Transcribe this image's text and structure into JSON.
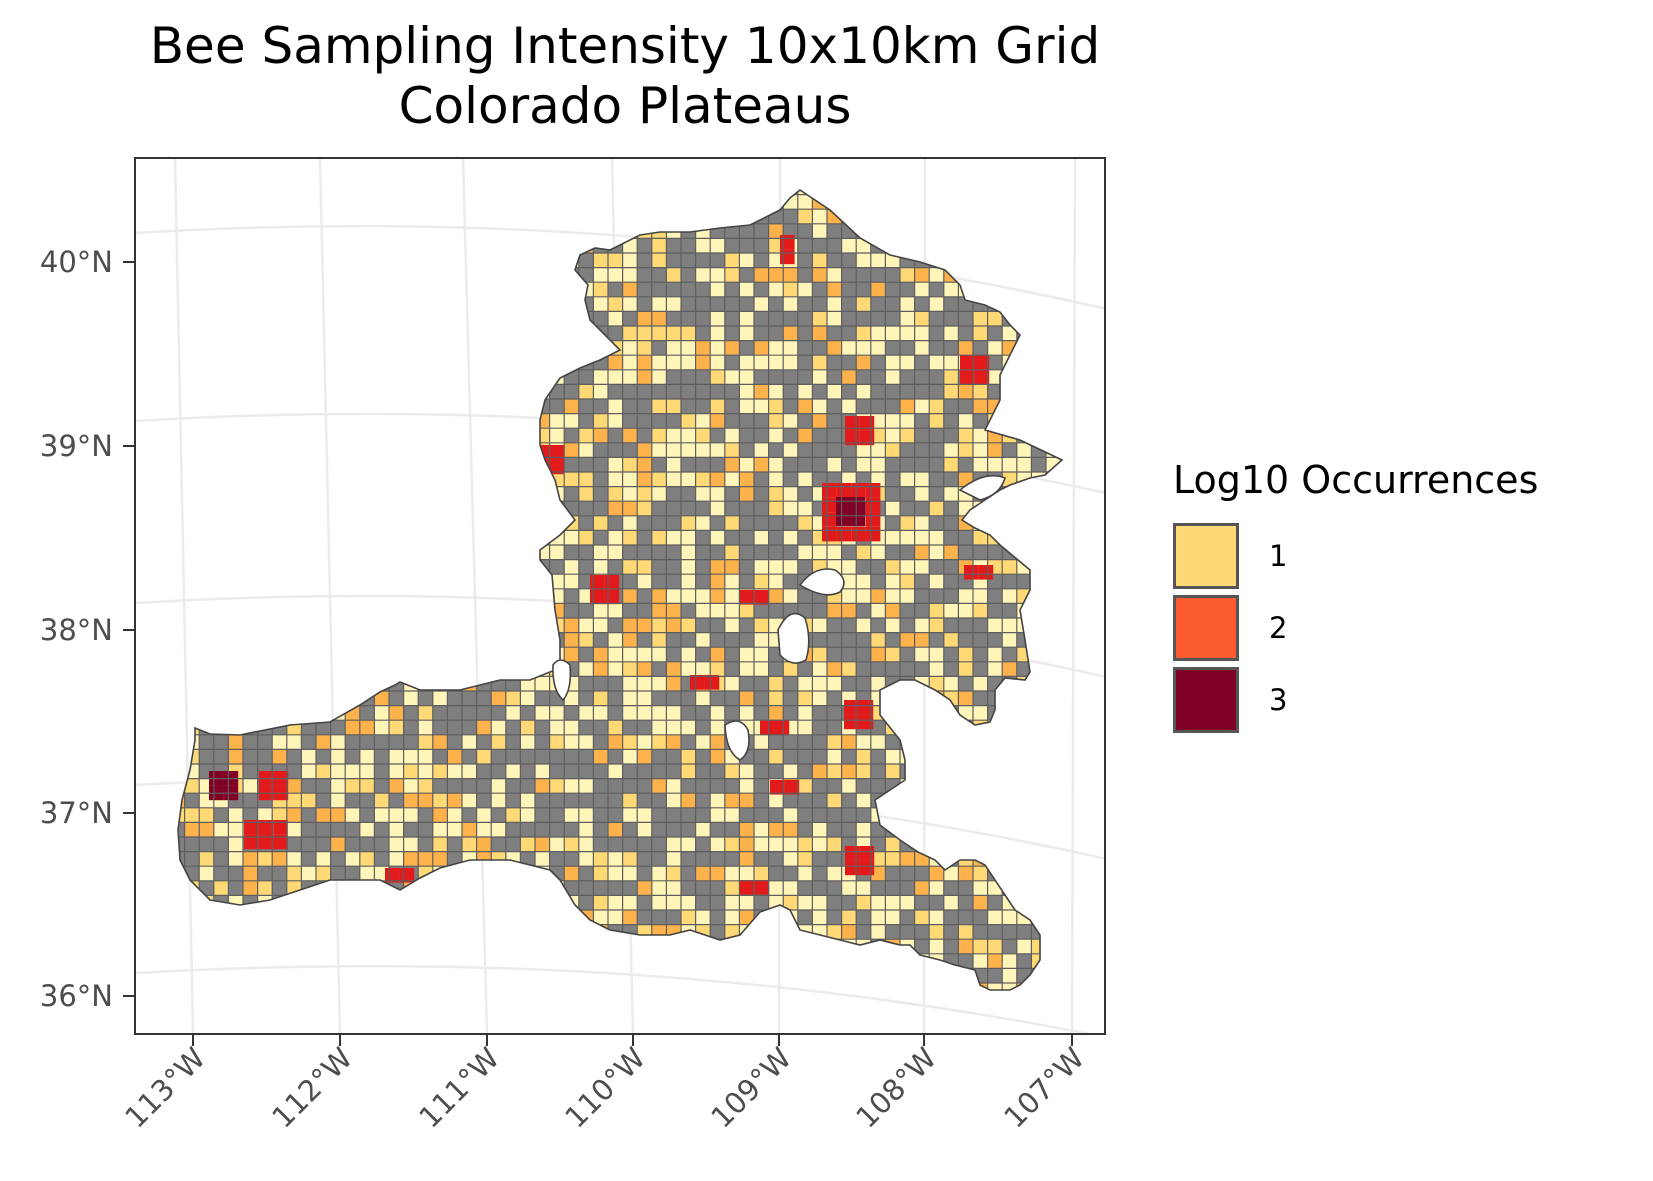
{
  "title": {
    "line1": "Bee Sampling Intensity 10x10km Grid",
    "line2": "Colorado Plateaus"
  },
  "axes": {
    "lat_labels": [
      "40°N",
      "39°N",
      "38°N",
      "37°N",
      "36°N"
    ],
    "lon_labels": [
      "113°W",
      "112°W",
      "111°W",
      "110°W",
      "109°W",
      "108°W",
      "107°W"
    ]
  },
  "legend": {
    "title": "Log10 Occurrences",
    "items": [
      {
        "label": "1",
        "color": "#FED976"
      },
      {
        "label": "2",
        "color": "#FC5A2F"
      },
      {
        "label": "3",
        "color": "#800026"
      }
    ]
  },
  "colors": {
    "no_data_cell": "#7F7F7F",
    "class_0": "#FFF5B8",
    "class_0_5": "#FEB24C",
    "class_2_5": "#E31A1C",
    "grid_line": "#EBEBEB",
    "panel_border": "#333333"
  }
}
